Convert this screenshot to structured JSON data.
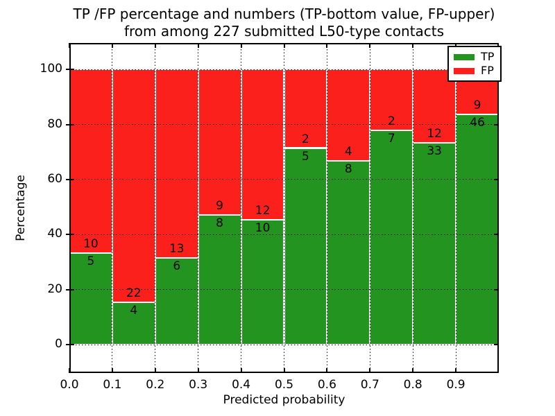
{
  "title": {
    "line1": "TP /FP percentage and numbers (TP-bottom value, FP-upper)",
    "line2": "from among 227 submitted L50-type contacts"
  },
  "chart_data": {
    "type": "bar",
    "stacked": true,
    "normalized": "each bin scaled to 100%",
    "total_contacts": 227,
    "bins": {
      "start": 0.0,
      "width": 0.1,
      "count": 10
    },
    "series": [
      {
        "name": "TP",
        "color": "#23941f",
        "counts": [
          5,
          4,
          6,
          8,
          10,
          5,
          8,
          7,
          33,
          46
        ]
      },
      {
        "name": "FP",
        "color": "#fb201c",
        "counts": [
          10,
          22,
          13,
          9,
          12,
          2,
          4,
          2,
          12,
          9
        ]
      }
    ],
    "tp_percent_heights": [
      33.3,
      15.4,
      31.6,
      47.1,
      45.5,
      71.4,
      66.7,
      77.8,
      73.3,
      83.6
    ],
    "xlabel": "Predicted probability",
    "ylabel": "Percentage",
    "xticks": [
      "0.0",
      "0.1",
      "0.2",
      "0.3",
      "0.4",
      "0.5",
      "0.6",
      "0.7",
      "0.8",
      "0.9"
    ],
    "yticks": [
      0,
      20,
      40,
      60,
      80,
      100
    ],
    "xlim": [
      0.0,
      1.0
    ],
    "ylim": [
      -10.3,
      109.6
    ],
    "grid": true,
    "grid_style": "dotted black, drawn over bars",
    "bar_edge_color": "#ffffff",
    "legend_position": "upper right",
    "legend_items": [
      "TP",
      "FP"
    ]
  }
}
